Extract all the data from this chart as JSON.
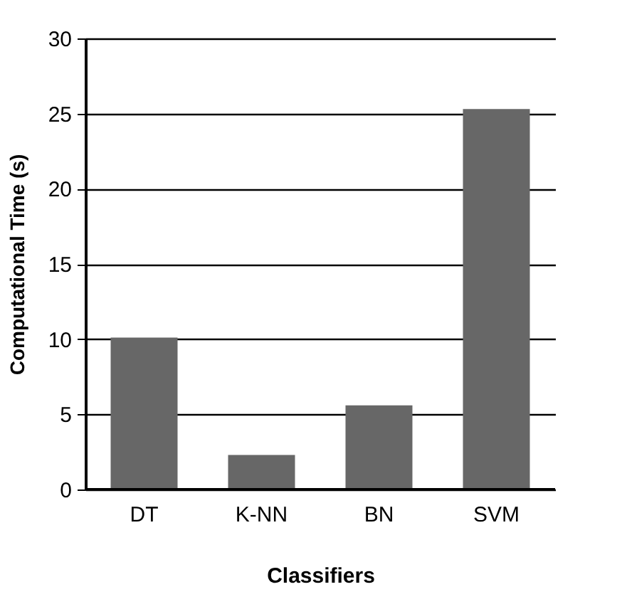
{
  "chart_data": {
    "type": "bar",
    "xlabel": "Classifiers",
    "ylabel": "Computational Time (s)",
    "categories": [
      "DT",
      "K-NN",
      "BN",
      "SVM"
    ],
    "values": [
      10.1,
      2.3,
      5.6,
      25.3
    ],
    "color": "#676767",
    "ylim": [
      0,
      30
    ],
    "yticks": [
      0,
      5,
      10,
      15,
      20,
      25,
      30
    ],
    "grid": "y"
  }
}
